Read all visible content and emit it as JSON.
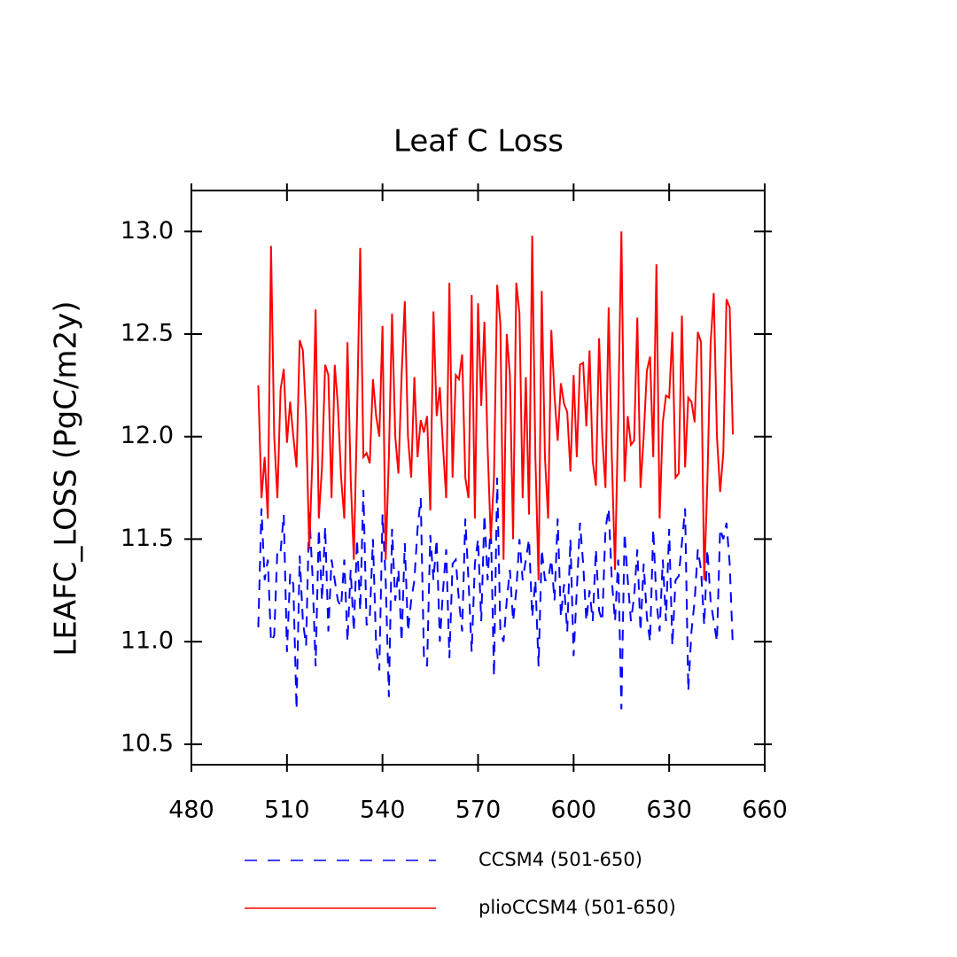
{
  "chart_data": {
    "type": "line",
    "title": "Leaf C Loss",
    "y_label": "LEAFC_LOSS  (PgC/m2y)",
    "x": [
      501,
      502,
      503,
      504,
      505,
      506,
      507,
      508,
      509,
      510,
      511,
      512,
      513,
      514,
      515,
      516,
      517,
      518,
      519,
      520,
      521,
      522,
      523,
      524,
      525,
      526,
      527,
      528,
      529,
      530,
      531,
      532,
      533,
      534,
      535,
      536,
      537,
      538,
      539,
      540,
      541,
      542,
      543,
      544,
      545,
      546,
      547,
      548,
      549,
      550,
      551,
      552,
      553,
      554,
      555,
      556,
      557,
      558,
      559,
      560,
      561,
      562,
      563,
      564,
      565,
      566,
      567,
      568,
      569,
      570,
      571,
      572,
      573,
      574,
      575,
      576,
      577,
      578,
      579,
      580,
      581,
      582,
      583,
      584,
      585,
      586,
      587,
      588,
      589,
      590,
      591,
      592,
      593,
      594,
      595,
      596,
      597,
      598,
      599,
      600,
      601,
      602,
      603,
      604,
      605,
      606,
      607,
      608,
      609,
      610,
      611,
      612,
      613,
      614,
      615,
      616,
      617,
      618,
      619,
      620,
      621,
      622,
      623,
      624,
      625,
      626,
      627,
      628,
      629,
      630,
      631,
      632,
      633,
      634,
      635,
      636,
      637,
      638,
      639,
      640,
      641,
      642,
      643,
      644,
      645,
      646,
      647,
      648,
      649,
      650
    ],
    "series": [
      {
        "name": "CCSM4 (501-650)",
        "color": "#0000ff",
        "dash": true,
        "values": [
          11.07,
          11.65,
          11.3,
          11.4,
          11.0,
          11.03,
          11.45,
          11.44,
          11.62,
          10.95,
          11.33,
          11.28,
          10.67,
          11.42,
          11.1,
          10.98,
          11.63,
          11.33,
          10.88,
          11.55,
          11.2,
          11.56,
          11.05,
          11.4,
          11.3,
          11.2,
          11.17,
          11.4,
          11.0,
          11.35,
          11.05,
          11.5,
          11.15,
          11.74,
          11.08,
          11.12,
          11.5,
          10.98,
          10.86,
          11.62,
          11.3,
          10.73,
          11.55,
          11.2,
          11.35,
          11.0,
          11.48,
          11.05,
          11.2,
          11.3,
          11.55,
          11.7,
          10.93,
          10.88,
          11.52,
          11.3,
          11.5,
          11.0,
          11.25,
          11.45,
          10.92,
          11.38,
          11.4,
          11.2,
          11.05,
          11.6,
          11.3,
          10.95,
          11.38,
          11.5,
          11.1,
          11.62,
          11.3,
          11.58,
          10.83,
          11.8,
          11.05,
          11.0,
          11.2,
          11.35,
          11.1,
          11.25,
          11.5,
          11.3,
          11.4,
          11.5,
          11.12,
          11.3,
          10.88,
          11.45,
          11.3,
          11.3,
          11.4,
          11.2,
          11.6,
          11.12,
          11.28,
          11.05,
          11.5,
          10.93,
          11.25,
          11.58,
          11.38,
          11.1,
          11.25,
          11.1,
          11.45,
          11.15,
          11.1,
          11.55,
          11.65,
          11.3,
          11.1,
          11.4,
          10.67,
          11.53,
          11.3,
          11.1,
          11.22,
          11.45,
          11.05,
          11.38,
          11.12,
          11.0,
          11.55,
          11.2,
          11.05,
          11.4,
          11.1,
          11.55,
          10.98,
          11.3,
          11.32,
          11.48,
          11.65,
          10.76,
          11.05,
          11.2,
          11.45,
          11.35,
          11.08,
          11.45,
          11.2,
          11.1,
          11.0,
          11.55,
          11.5,
          11.58,
          11.38,
          10.97
        ]
      },
      {
        "name": "plioCCSM4 (501-650)",
        "color": "#ff0000",
        "dash": false,
        "values": [
          12.25,
          11.7,
          11.9,
          11.6,
          12.93,
          12.0,
          11.7,
          12.23,
          12.33,
          11.97,
          12.17,
          12.0,
          11.85,
          12.47,
          12.42,
          12.1,
          11.45,
          11.9,
          12.62,
          11.6,
          11.85,
          12.35,
          12.3,
          11.7,
          12.35,
          12.15,
          11.8,
          11.6,
          12.46,
          11.8,
          11.4,
          12.1,
          12.92,
          11.9,
          11.92,
          11.87,
          12.28,
          12.1,
          12.0,
          12.54,
          11.4,
          11.9,
          12.6,
          12.0,
          11.82,
          12.3,
          12.66,
          12.0,
          11.8,
          12.29,
          11.9,
          12.08,
          12.02,
          12.1,
          11.64,
          12.61,
          12.1,
          12.24,
          11.95,
          11.7,
          12.75,
          11.8,
          12.3,
          12.28,
          12.4,
          11.8,
          11.7,
          12.69,
          11.6,
          12.65,
          12.15,
          12.56,
          11.95,
          11.5,
          11.8,
          12.74,
          12.55,
          11.4,
          12.5,
          12.3,
          11.5,
          12.75,
          12.6,
          11.7,
          12.29,
          11.62,
          12.98,
          11.9,
          11.3,
          12.71,
          11.9,
          11.6,
          12.52,
          12.2,
          11.98,
          12.26,
          12.16,
          12.12,
          11.83,
          12.3,
          11.9,
          12.35,
          12.36,
          12.05,
          12.42,
          11.88,
          11.76,
          12.48,
          12.0,
          11.75,
          12.63,
          11.9,
          11.35,
          12.1,
          13.0,
          11.78,
          12.1,
          11.96,
          11.98,
          12.58,
          11.75,
          12.0,
          12.32,
          12.39,
          11.9,
          12.84,
          11.6,
          12.07,
          12.2,
          12.19,
          12.51,
          11.8,
          11.82,
          12.59,
          11.85,
          12.19,
          12.17,
          12.07,
          12.51,
          12.46,
          11.3,
          11.78,
          12.45,
          12.7,
          12.0,
          11.73,
          11.92,
          12.67,
          12.63,
          12.01
        ]
      }
    ],
    "xlim": [
      480,
      660
    ],
    "xticks": [
      480,
      510,
      540,
      570,
      600,
      630,
      660
    ],
    "ylim": [
      10.4,
      13.2
    ],
    "yticks": [
      10.5,
      {
        "value": 11,
        "label": "11.0"
      },
      11.5,
      {
        "value": 12,
        "label": "12.0"
      },
      12.5,
      {
        "value": 13,
        "label": "13.0"
      }
    ]
  }
}
